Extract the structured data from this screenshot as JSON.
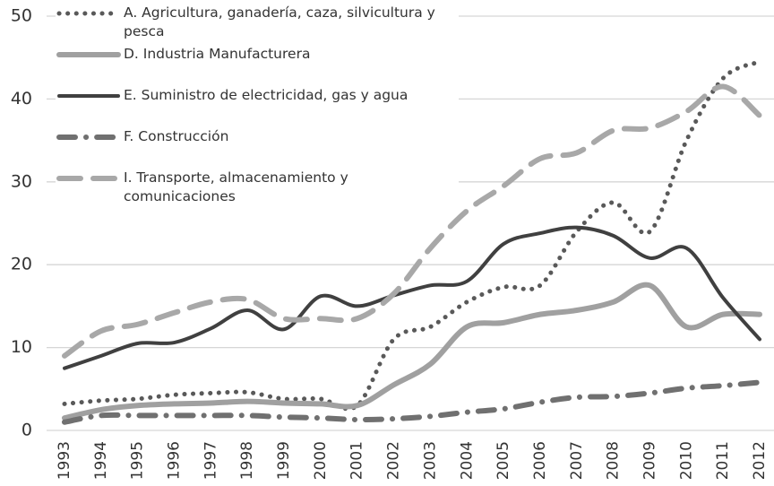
{
  "chart_data": {
    "type": "line",
    "categories": [
      "1993",
      "1994",
      "1995",
      "1996",
      "1997",
      "1998",
      "1999",
      "2000",
      "2001",
      "2002",
      "2003",
      "2004",
      "2005",
      "2006",
      "2007",
      "2008",
      "2009",
      "2010",
      "2011",
      "2012"
    ],
    "series": [
      {
        "name": "A. Agricultura, ganadería, caza, silvicultura y pesca",
        "color": "#595959",
        "values": [
          3.2,
          3.6,
          3.8,
          4.3,
          4.5,
          4.6,
          3.8,
          3.8,
          3.0,
          11,
          12.5,
          15.5,
          17.3,
          17.5,
          24,
          27.5,
          24,
          35,
          42.5,
          44.5
        ]
      },
      {
        "name": "D. Industria Manufacturera",
        "color": "#a0a0a0",
        "values": [
          1.5,
          2.5,
          3,
          3.2,
          3.3,
          3.5,
          3.3,
          3.2,
          3,
          5.5,
          8,
          12.5,
          13,
          14,
          14.5,
          15.5,
          17.5,
          12.5,
          14,
          14
        ]
      },
      {
        "name": "E. Suministro de electricidad, gas y agua",
        "color": "#404040",
        "values": [
          7.5,
          9,
          10.5,
          10.6,
          12.3,
          14.5,
          12.2,
          16.2,
          15,
          16.3,
          17.5,
          18,
          22.5,
          23.8,
          24.5,
          23.5,
          20.8,
          22,
          16,
          11
        ]
      },
      {
        "name": "F. Construcción",
        "color": "#707070",
        "values": [
          1,
          1.8,
          1.8,
          1.8,
          1.8,
          1.8,
          1.6,
          1.5,
          1.3,
          1.4,
          1.7,
          2.2,
          2.6,
          3.4,
          4,
          4.1,
          4.5,
          5.1,
          5.4,
          5.8
        ]
      },
      {
        "name": "I. Transporte, almacenamiento y comunicaciones",
        "color": "#a8a8a8",
        "values": [
          9,
          12,
          12.8,
          14.2,
          15.5,
          15.8,
          13.5,
          13.5,
          13.5,
          16.5,
          22,
          26.5,
          29.5,
          32.8,
          33.5,
          36.2,
          36.5,
          38.5,
          41.5,
          38
        ]
      }
    ],
    "ylim": [
      0,
      50
    ],
    "yticks": [
      0,
      10,
      20,
      30,
      40,
      50
    ],
    "grid": true,
    "legend": "top-left"
  }
}
